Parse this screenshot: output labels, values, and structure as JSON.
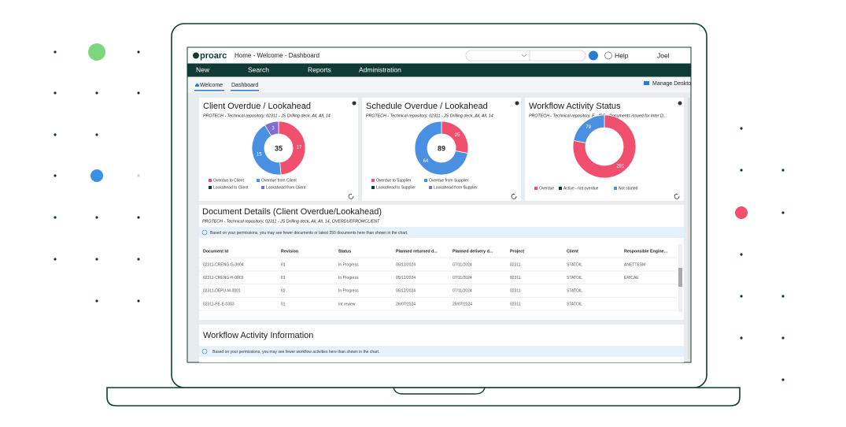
{
  "header": {
    "logo": "proarc",
    "breadcrumb": "Home - Welcome - Dashboard",
    "help": "Help",
    "user": "Joel"
  },
  "nav": [
    "New",
    "Search",
    "Reports",
    "Administration"
  ],
  "tabs": [
    "Welcome",
    "Dashboard"
  ],
  "manage": "Manage Deskto",
  "charts": [
    {
      "title": "Client Overdue / Lookahead",
      "subtitle": "PROTECH - Technical repository, 02311 - JS Drilling deck, All, All, 14",
      "total": 35,
      "series": [
        {
          "name": "Overdue to Client",
          "color": "#f0506e",
          "value": 17
        },
        {
          "name": "Overdue from Client",
          "color": "#4a90e2",
          "value": 15
        },
        {
          "name": "Lookahead to Client",
          "color": "#123c35",
          "value": null
        },
        {
          "name": "Lookahead from Client",
          "color": "#7c6fd0",
          "value": 3
        }
      ]
    },
    {
      "title": "Schedule Overdue / Lookahead",
      "subtitle": "PROTECH - Technical repository, 02311 - JS Drilling deck, All, All, 14",
      "total": 89,
      "series": [
        {
          "name": "Overdue to Supplier",
          "color": "#f0506e",
          "value": 25
        },
        {
          "name": "Overdue from Supplier",
          "color": "#4a90e2",
          "value": 64
        },
        {
          "name": "Lookahead to Supplier",
          "color": "#123c35",
          "value": null
        },
        {
          "name": "Lookahead from Supplier",
          "color": "#7c6fd0",
          "value": null
        }
      ]
    },
    {
      "title": "Workflow Activity Status",
      "subtitle": "PROTECH - Technical repository, E - IDC - Documents issued for Inter D...",
      "series": [
        {
          "name": "Overdue",
          "color": "#f0506e",
          "value": 281
        },
        {
          "name": "Active - not overdue",
          "color": "#123c35",
          "value": null
        },
        {
          "name": "Not started",
          "color": "#4a90e2",
          "value": 79
        }
      ]
    }
  ],
  "details": {
    "title": "Document Details (Client Overdue/Lookahead)",
    "subtitle": "PROTECH - Technical repository, 02311 - JS Drilling deck, All, All, 14, OVERDUEFROMCLIENT",
    "note": "Based on your permissions, you may see fewer documents or latest 250 documents here than shown in the chart.",
    "columns": [
      "Document Id",
      "Revision",
      "Status",
      "Planned returned d...",
      "Planned delivery d...",
      "Project",
      "Client",
      "Responsible Engine..."
    ],
    "rows": [
      [
        "02311-CRENG-G-0004",
        "01",
        "In Progress",
        "05/12/2024",
        "07/11/2024",
        "02311",
        "STATOIL",
        "ANETTESM"
      ],
      [
        "02311-CRENG-H-0003",
        "01",
        "In Progress",
        "05/12/2024",
        "07/11/2024",
        "02311",
        "STATOIL",
        "ERICAE"
      ],
      [
        "02311-DEPU-M-0001",
        "02",
        "In Progress",
        "05/12/2024",
        "07/11/2024",
        "02311",
        "STATOIL",
        null
      ],
      [
        "02311-PE-E-0303",
        "01",
        "Int review",
        "26/07/2024",
        "25/07/2024",
        "02311",
        "STATOIL",
        null
      ]
    ]
  },
  "workflow": {
    "title": "Workflow Activity Information",
    "note": "Based on your permissions, you may see fewer workflow activities here than shown in the chart."
  }
}
